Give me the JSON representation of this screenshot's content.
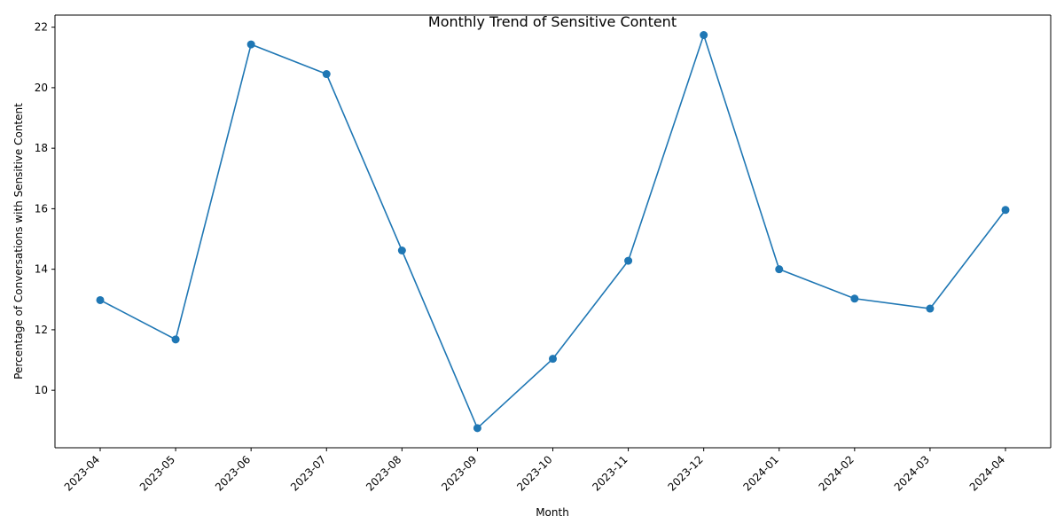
{
  "chart_data": {
    "type": "line",
    "title": "Monthly Trend of Sensitive Content",
    "xlabel": "Month",
    "ylabel": "Percentage of Conversations with Sensitive Content",
    "categories": [
      "2023-04",
      "2023-05",
      "2023-06",
      "2023-07",
      "2023-08",
      "2023-09",
      "2023-10",
      "2023-11",
      "2023-12",
      "2024-01",
      "2024-02",
      "2024-03",
      "2024-04"
    ],
    "series": [
      {
        "values": [
          12.98,
          11.68,
          21.43,
          20.45,
          14.62,
          8.75,
          11.04,
          14.28,
          21.74,
          14.0,
          13.03,
          12.7,
          15.96
        ]
      }
    ],
    "ylim": [
      8.1,
      22.4
    ],
    "yticks": [
      10,
      12,
      14,
      16,
      18,
      20,
      22
    ],
    "color": "#1f77b4",
    "grid": false,
    "marker": "circle"
  }
}
